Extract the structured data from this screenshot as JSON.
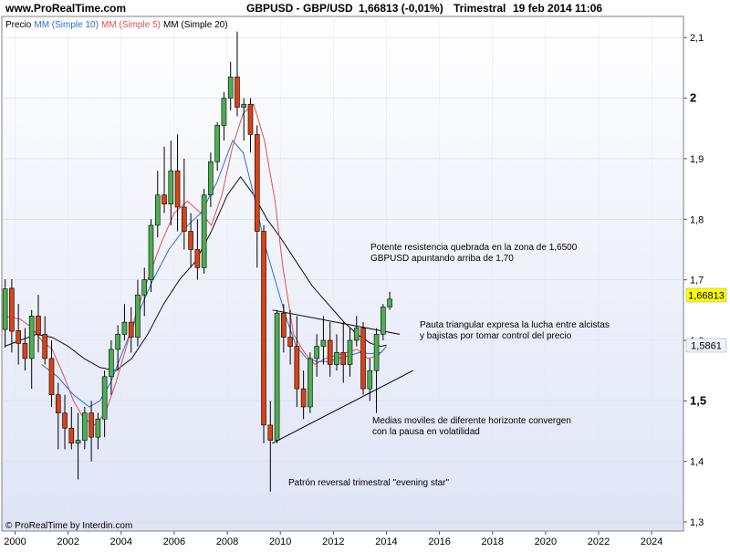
{
  "header": {
    "site": "www.ProRealTime.com",
    "instrument": "GBPUSD - GBP/USD",
    "last_change": "1,66813 (-0,01%)",
    "period": "Trimestral",
    "timestamp": "19 feb 2014 11:06"
  },
  "legend": {
    "price": "Precio",
    "ma10": "MM (Simple 10)",
    "ma5": "MM (Simple 5)",
    "ma20": "MM (Simple 20)"
  },
  "footer": {
    "copyright": "© ProRealTime by Interdin.com"
  },
  "colors": {
    "up": "#4caf50",
    "down": "#d84315",
    "ma10": "#2f6fd0",
    "ma5": "#e05050",
    "ma20": "#111111",
    "price_badge": "#ffff00",
    "ma_badge": "#eef1fa"
  },
  "badges": {
    "last_price": "1,66813",
    "ma_value": "1,5861"
  },
  "annotations": [
    "Potente resistencia quebrada en la zona de 1,6500",
    "GBPUSD apuntando arriba de 1,70",
    "Pauta triangular expresa la lucha entre alcistas",
    "y bajistas por tomar control del precio",
    "Medias moviles de diferente horizonte convergen",
    "con la pausa en volatilidad",
    "Patrón reversal trimestral  \"evening star\""
  ],
  "chart_data": {
    "type": "candlestick",
    "xlim": [
      1999.5,
      2025.2
    ],
    "ylim": [
      1.285,
      2.135
    ],
    "x_ticks": [
      "2000",
      "2002",
      "2004",
      "2006",
      "2008",
      "2010",
      "2012",
      "2014",
      "2016",
      "2018",
      "2020",
      "2022",
      "2024"
    ],
    "y_ticks": [
      "1,3",
      "1,4",
      "1,5",
      "1,6",
      "1,7",
      "1,8",
      "1,9",
      "2",
      "2,1"
    ],
    "y_tick_values": [
      1.3,
      1.4,
      1.5,
      1.6,
      1.7,
      1.8,
      1.9,
      2.0,
      2.1
    ],
    "bold_y_ticks": [
      "1,5",
      "2"
    ],
    "candles": [
      {
        "t": 1999.625,
        "o": 1.618,
        "h": 1.701,
        "l": 1.588,
        "c": 1.685
      },
      {
        "t": 1999.875,
        "o": 1.686,
        "h": 1.701,
        "l": 1.58,
        "c": 1.615
      },
      {
        "t": 2000.125,
        "o": 1.616,
        "h": 1.66,
        "l": 1.56,
        "c": 1.595
      },
      {
        "t": 2000.375,
        "o": 1.595,
        "h": 1.62,
        "l": 1.55,
        "c": 1.57
      },
      {
        "t": 2000.625,
        "o": 1.57,
        "h": 1.65,
        "l": 1.52,
        "c": 1.64
      },
      {
        "t": 2000.875,
        "o": 1.64,
        "h": 1.675,
        "l": 1.58,
        "c": 1.61
      },
      {
        "t": 2001.125,
        "o": 1.61,
        "h": 1.64,
        "l": 1.56,
        "c": 1.57
      },
      {
        "t": 2001.375,
        "o": 1.57,
        "h": 1.6,
        "l": 1.49,
        "c": 1.51
      },
      {
        "t": 2001.625,
        "o": 1.51,
        "h": 1.53,
        "l": 1.42,
        "c": 1.48
      },
      {
        "t": 2001.875,
        "o": 1.48,
        "h": 1.51,
        "l": 1.42,
        "c": 1.455
      },
      {
        "t": 2002.125,
        "o": 1.455,
        "h": 1.49,
        "l": 1.42,
        "c": 1.43
      },
      {
        "t": 2002.375,
        "o": 1.43,
        "h": 1.48,
        "l": 1.37,
        "c": 1.435
      },
      {
        "t": 2002.625,
        "o": 1.435,
        "h": 1.49,
        "l": 1.42,
        "c": 1.48
      },
      {
        "t": 2002.875,
        "o": 1.48,
        "h": 1.5,
        "l": 1.4,
        "c": 1.44
      },
      {
        "t": 2003.125,
        "o": 1.44,
        "h": 1.48,
        "l": 1.42,
        "c": 1.47
      },
      {
        "t": 2003.375,
        "o": 1.47,
        "h": 1.55,
        "l": 1.44,
        "c": 1.54
      },
      {
        "t": 2003.625,
        "o": 1.54,
        "h": 1.6,
        "l": 1.51,
        "c": 1.585
      },
      {
        "t": 2003.875,
        "o": 1.585,
        "h": 1.625,
        "l": 1.55,
        "c": 1.61
      },
      {
        "t": 2004.125,
        "o": 1.61,
        "h": 1.66,
        "l": 1.6,
        "c": 1.63
      },
      {
        "t": 2004.375,
        "o": 1.63,
        "h": 1.655,
        "l": 1.58,
        "c": 1.605
      },
      {
        "t": 2004.625,
        "o": 1.605,
        "h": 1.7,
        "l": 1.59,
        "c": 1.675
      },
      {
        "t": 2004.875,
        "o": 1.675,
        "h": 1.72,
        "l": 1.64,
        "c": 1.7
      },
      {
        "t": 2005.125,
        "o": 1.7,
        "h": 1.8,
        "l": 1.68,
        "c": 1.79
      },
      {
        "t": 2005.375,
        "o": 1.79,
        "h": 1.88,
        "l": 1.77,
        "c": 1.84
      },
      {
        "t": 2005.625,
        "o": 1.84,
        "h": 1.92,
        "l": 1.81,
        "c": 1.825
      },
      {
        "t": 2005.875,
        "o": 1.825,
        "h": 1.93,
        "l": 1.79,
        "c": 1.88
      },
      {
        "t": 2006.125,
        "o": 1.88,
        "h": 1.94,
        "l": 1.78,
        "c": 1.82
      },
      {
        "t": 2006.375,
        "o": 1.82,
        "h": 1.9,
        "l": 1.75,
        "c": 1.78
      },
      {
        "t": 2006.625,
        "o": 1.78,
        "h": 1.81,
        "l": 1.72,
        "c": 1.75
      },
      {
        "t": 2006.875,
        "o": 1.75,
        "h": 1.8,
        "l": 1.7,
        "c": 1.72
      },
      {
        "t": 2007.125,
        "o": 1.72,
        "h": 1.85,
        "l": 1.71,
        "c": 1.84
      },
      {
        "t": 2007.375,
        "o": 1.84,
        "h": 1.91,
        "l": 1.82,
        "c": 1.895
      },
      {
        "t": 2007.625,
        "o": 1.895,
        "h": 1.96,
        "l": 1.88,
        "c": 1.955
      },
      {
        "t": 2007.875,
        "o": 1.955,
        "h": 2.01,
        "l": 1.93,
        "c": 2.0
      },
      {
        "t": 2008.125,
        "o": 2.0,
        "h": 2.06,
        "l": 1.98,
        "c": 2.035
      },
      {
        "t": 2008.375,
        "o": 2.035,
        "h": 2.11,
        "l": 1.97,
        "c": 1.985
      },
      {
        "t": 2008.625,
        "o": 1.985,
        "h": 2.0,
        "l": 1.93,
        "c": 1.99
      },
      {
        "t": 2008.875,
        "o": 1.99,
        "h": 2.0,
        "l": 1.91,
        "c": 1.94
      },
      {
        "t": 2009.125,
        "o": 1.94,
        "h": 1.955,
        "l": 1.72,
        "c": 1.78
      },
      {
        "t": 2009.375,
        "o": 1.78,
        "h": 1.79,
        "l": 1.43,
        "c": 1.46
      },
      {
        "t": 2009.625,
        "o": 1.46,
        "h": 1.5,
        "l": 1.35,
        "c": 1.435
      },
      {
        "t": 2009.875,
        "o": 1.435,
        "h": 1.65,
        "l": 1.43,
        "c": 1.645
      },
      {
        "t": 2010.125,
        "o": 1.645,
        "h": 1.66,
        "l": 1.58,
        "c": 1.605
      },
      {
        "t": 2010.375,
        "o": 1.605,
        "h": 1.65,
        "l": 1.56,
        "c": 1.59
      },
      {
        "t": 2010.625,
        "o": 1.59,
        "h": 1.64,
        "l": 1.49,
        "c": 1.52
      },
      {
        "t": 2010.875,
        "o": 1.52,
        "h": 1.55,
        "l": 1.47,
        "c": 1.49
      },
      {
        "t": 2011.125,
        "o": 1.49,
        "h": 1.58,
        "l": 1.48,
        "c": 1.57
      },
      {
        "t": 2011.375,
        "o": 1.57,
        "h": 1.61,
        "l": 1.54,
        "c": 1.59
      },
      {
        "t": 2011.625,
        "o": 1.59,
        "h": 1.64,
        "l": 1.56,
        "c": 1.6
      },
      {
        "t": 2011.875,
        "o": 1.6,
        "h": 1.63,
        "l": 1.54,
        "c": 1.56
      },
      {
        "t": 2012.125,
        "o": 1.56,
        "h": 1.61,
        "l": 1.55,
        "c": 1.58
      },
      {
        "t": 2012.375,
        "o": 1.58,
        "h": 1.63,
        "l": 1.53,
        "c": 1.56
      },
      {
        "t": 2012.625,
        "o": 1.56,
        "h": 1.62,
        "l": 1.54,
        "c": 1.6
      },
      {
        "t": 2012.875,
        "o": 1.6,
        "h": 1.64,
        "l": 1.59,
        "c": 1.62
      },
      {
        "t": 2013.125,
        "o": 1.62,
        "h": 1.63,
        "l": 1.51,
        "c": 1.52
      },
      {
        "t": 2013.375,
        "o": 1.52,
        "h": 1.57,
        "l": 1.5,
        "c": 1.55
      },
      {
        "t": 2013.625,
        "o": 1.55,
        "h": 1.62,
        "l": 1.48,
        "c": 1.61
      },
      {
        "t": 2013.875,
        "o": 1.61,
        "h": 1.66,
        "l": 1.6,
        "c": 1.655
      },
      {
        "t": 2014.125,
        "o": 1.655,
        "h": 1.68,
        "l": 1.65,
        "c": 1.668
      }
    ],
    "ma5": [
      [
        1999.6,
        1.64
      ],
      [
        2000.2,
        1.635
      ],
      [
        2000.6,
        1.622
      ],
      [
        2001.0,
        1.6
      ],
      [
        2001.4,
        1.585
      ],
      [
        2001.8,
        1.545
      ],
      [
        2002.2,
        1.5
      ],
      [
        2002.6,
        1.47
      ],
      [
        2003.0,
        1.46
      ],
      [
        2003.4,
        1.48
      ],
      [
        2003.8,
        1.53
      ],
      [
        2004.2,
        1.59
      ],
      [
        2004.6,
        1.65
      ],
      [
        2005.0,
        1.7
      ],
      [
        2005.5,
        1.76
      ],
      [
        2006.0,
        1.81
      ],
      [
        2006.5,
        1.83
      ],
      [
        2007.0,
        1.81
      ],
      [
        2007.4,
        1.79
      ],
      [
        2007.8,
        1.84
      ],
      [
        2008.2,
        1.92
      ],
      [
        2008.6,
        1.975
      ],
      [
        2009.0,
        1.99
      ],
      [
        2009.4,
        1.93
      ],
      [
        2009.8,
        1.83
      ],
      [
        2010.1,
        1.72
      ],
      [
        2010.5,
        1.61
      ],
      [
        2010.9,
        1.58
      ],
      [
        2011.3,
        1.56
      ],
      [
        2011.7,
        1.57
      ],
      [
        2012.1,
        1.575
      ],
      [
        2012.5,
        1.58
      ],
      [
        2012.9,
        1.585
      ],
      [
        2013.3,
        1.57
      ],
      [
        2013.7,
        1.575
      ],
      [
        2014.0,
        1.59
      ]
    ],
    "ma10": [
      [
        2001.0,
        1.56
      ],
      [
        2001.6,
        1.54
      ],
      [
        2002.2,
        1.51
      ],
      [
        2002.8,
        1.49
      ],
      [
        2003.2,
        1.5
      ],
      [
        2003.6,
        1.53
      ],
      [
        2004.0,
        1.575
      ],
      [
        2004.6,
        1.64
      ],
      [
        2005.2,
        1.7
      ],
      [
        2005.8,
        1.75
      ],
      [
        2006.4,
        1.785
      ],
      [
        2007.0,
        1.81
      ],
      [
        2007.6,
        1.86
      ],
      [
        2008.2,
        1.93
      ],
      [
        2008.6,
        1.91
      ],
      [
        2009.0,
        1.84
      ],
      [
        2009.4,
        1.76
      ],
      [
        2009.8,
        1.7
      ],
      [
        2010.2,
        1.64
      ],
      [
        2010.6,
        1.59
      ],
      [
        2011.0,
        1.57
      ],
      [
        2011.4,
        1.565
      ],
      [
        2011.8,
        1.565
      ],
      [
        2012.2,
        1.57
      ],
      [
        2012.6,
        1.575
      ],
      [
        2013.0,
        1.58
      ],
      [
        2013.4,
        1.578
      ],
      [
        2013.8,
        1.58
      ],
      [
        2014.0,
        1.59
      ]
    ],
    "ma20": [
      [
        1999.6,
        1.59
      ],
      [
        2000.2,
        1.6
      ],
      [
        2000.8,
        1.61
      ],
      [
        2001.4,
        1.605
      ],
      [
        2002.0,
        1.59
      ],
      [
        2002.6,
        1.57
      ],
      [
        2003.2,
        1.555
      ],
      [
        2003.8,
        1.55
      ],
      [
        2004.4,
        1.57
      ],
      [
        2005.0,
        1.61
      ],
      [
        2005.6,
        1.66
      ],
      [
        2006.2,
        1.7
      ],
      [
        2006.8,
        1.73
      ],
      [
        2007.4,
        1.78
      ],
      [
        2008.0,
        1.84
      ],
      [
        2008.5,
        1.87
      ],
      [
        2009.0,
        1.84
      ],
      [
        2009.5,
        1.8
      ],
      [
        2010.0,
        1.77
      ],
      [
        2010.6,
        1.73
      ],
      [
        2011.2,
        1.69
      ],
      [
        2011.8,
        1.66
      ],
      [
        2012.4,
        1.63
      ],
      [
        2012.9,
        1.61
      ],
      [
        2013.4,
        1.595
      ],
      [
        2013.8,
        1.59
      ],
      [
        2014.0,
        1.592
      ]
    ],
    "trendlines": [
      {
        "name": "upper-triangle-line",
        "points": [
          [
            2009.7,
            1.65
          ],
          [
            2014.5,
            1.61
          ]
        ]
      },
      {
        "name": "lower-triangle-line",
        "points": [
          [
            2009.7,
            1.43
          ],
          [
            2015.0,
            1.55
          ]
        ]
      }
    ]
  }
}
